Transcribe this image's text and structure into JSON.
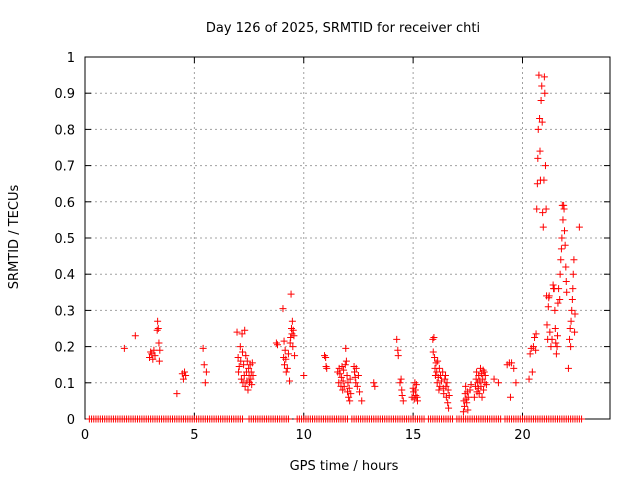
{
  "chart_data": {
    "type": "scatter",
    "title": "Day 126 of 2025, SRMTID for receiver chti",
    "xlabel": "GPS time / hours",
    "ylabel": "SRMTID / TECUs",
    "xlim": [
      0,
      24
    ],
    "ylim": [
      0,
      1
    ],
    "x_ticks": [
      0,
      5,
      10,
      15,
      20
    ],
    "y_ticks": [
      0,
      0.1,
      0.2,
      0.3,
      0.4,
      0.5,
      0.6,
      0.7,
      0.8,
      0.9,
      1
    ],
    "x_tick_labels": [
      "0",
      "5",
      "10",
      "15",
      "20"
    ],
    "y_tick_labels": [
      "0",
      "0.1",
      "0.2",
      "0.3",
      "0.4",
      "0.5",
      "0.6",
      "0.7",
      "0.8",
      "0.9",
      "1"
    ],
    "grid": true,
    "marker": "plus",
    "color": "#ff0000",
    "series": [
      {
        "name": "SRMTID",
        "points": [
          [
            1.8,
            0.195
          ],
          [
            2.3,
            0.23
          ],
          [
            2.95,
            0.17
          ],
          [
            3.0,
            0.185
          ],
          [
            3.05,
            0.18
          ],
          [
            3.1,
            0.165
          ],
          [
            3.15,
            0.19
          ],
          [
            3.2,
            0.175
          ],
          [
            3.3,
            0.245
          ],
          [
            3.32,
            0.27
          ],
          [
            3.35,
            0.25
          ],
          [
            3.38,
            0.21
          ],
          [
            3.4,
            0.16
          ],
          [
            3.42,
            0.19
          ],
          [
            4.2,
            0.07
          ],
          [
            4.45,
            0.125
          ],
          [
            4.5,
            0.11
          ],
          [
            4.55,
            0.13
          ],
          [
            4.6,
            0.12
          ],
          [
            5.4,
            0.195
          ],
          [
            5.45,
            0.15
          ],
          [
            5.5,
            0.1
          ],
          [
            5.55,
            0.13
          ],
          [
            6.95,
            0.24
          ],
          [
            7.0,
            0.17
          ],
          [
            7.02,
            0.13
          ],
          [
            7.05,
            0.145
          ],
          [
            7.1,
            0.2
          ],
          [
            7.12,
            0.16
          ],
          [
            7.15,
            0.11
          ],
          [
            7.18,
            0.235
          ],
          [
            7.2,
            0.185
          ],
          [
            7.22,
            0.1
          ],
          [
            7.25,
            0.15
          ],
          [
            7.28,
            0.12
          ],
          [
            7.3,
            0.245
          ],
          [
            7.32,
            0.09
          ],
          [
            7.35,
            0.175
          ],
          [
            7.38,
            0.13
          ],
          [
            7.4,
            0.105
          ],
          [
            7.42,
            0.16
          ],
          [
            7.45,
            0.08
          ],
          [
            7.48,
            0.14
          ],
          [
            7.5,
            0.12
          ],
          [
            7.52,
            0.1
          ],
          [
            7.55,
            0.15
          ],
          [
            7.58,
            0.11
          ],
          [
            7.6,
            0.13
          ],
          [
            7.62,
            0.095
          ],
          [
            7.65,
            0.155
          ],
          [
            7.68,
            0.12
          ],
          [
            8.75,
            0.21
          ],
          [
            8.8,
            0.205
          ],
          [
            9.05,
            0.305
          ],
          [
            9.08,
            0.17
          ],
          [
            9.1,
            0.215
          ],
          [
            9.12,
            0.15
          ],
          [
            9.15,
            0.19
          ],
          [
            9.18,
            0.165
          ],
          [
            9.2,
            0.13
          ],
          [
            9.25,
            0.14
          ],
          [
            9.3,
            0.18
          ],
          [
            9.35,
            0.105
          ],
          [
            9.38,
            0.21
          ],
          [
            9.4,
            0.225
          ],
          [
            9.42,
            0.345
          ],
          [
            9.44,
            0.25
          ],
          [
            9.46,
            0.235
          ],
          [
            9.48,
            0.27
          ],
          [
            9.5,
            0.2
          ],
          [
            9.52,
            0.245
          ],
          [
            9.55,
            0.23
          ],
          [
            9.58,
            0.175
          ],
          [
            10.0,
            0.12
          ],
          [
            10.95,
            0.175
          ],
          [
            11.0,
            0.17
          ],
          [
            11.02,
            0.145
          ],
          [
            11.05,
            0.14
          ],
          [
            11.55,
            0.13
          ],
          [
            11.6,
            0.1
          ],
          [
            11.62,
            0.14
          ],
          [
            11.65,
            0.125
          ],
          [
            11.7,
            0.09
          ],
          [
            11.72,
            0.115
          ],
          [
            11.75,
            0.145
          ],
          [
            11.78,
            0.08
          ],
          [
            11.8,
            0.105
          ],
          [
            11.82,
            0.135
          ],
          [
            11.85,
            0.09
          ],
          [
            11.9,
            0.15
          ],
          [
            11.92,
            0.195
          ],
          [
            11.95,
            0.16
          ],
          [
            11.98,
            0.12
          ],
          [
            12.0,
            0.075
          ],
          [
            12.02,
            0.1
          ],
          [
            12.05,
            0.06
          ],
          [
            12.08,
            0.085
          ],
          [
            12.1,
            0.05
          ],
          [
            12.12,
            0.11
          ],
          [
            12.15,
            0.07
          ],
          [
            12.3,
            0.145
          ],
          [
            12.32,
            0.13
          ],
          [
            12.35,
            0.115
          ],
          [
            12.38,
            0.1
          ],
          [
            12.4,
            0.14
          ],
          [
            12.45,
            0.09
          ],
          [
            12.5,
            0.12
          ],
          [
            12.55,
            0.075
          ],
          [
            12.65,
            0.05
          ],
          [
            13.2,
            0.1
          ],
          [
            13.25,
            0.09
          ],
          [
            14.25,
            0.22
          ],
          [
            14.3,
            0.19
          ],
          [
            14.32,
            0.175
          ],
          [
            14.4,
            0.1
          ],
          [
            14.45,
            0.11
          ],
          [
            14.48,
            0.08
          ],
          [
            14.5,
            0.065
          ],
          [
            14.55,
            0.05
          ],
          [
            14.95,
            0.06
          ],
          [
            15.0,
            0.085
          ],
          [
            15.02,
            0.075
          ],
          [
            15.05,
            0.055
          ],
          [
            15.08,
            0.1
          ],
          [
            15.1,
            0.08
          ],
          [
            15.12,
            0.065
          ],
          [
            15.15,
            0.095
          ],
          [
            15.18,
            0.06
          ],
          [
            15.2,
            0.05
          ],
          [
            15.9,
            0.22
          ],
          [
            15.92,
            0.185
          ],
          [
            15.95,
            0.225
          ],
          [
            15.98,
            0.17
          ],
          [
            16.0,
            0.14
          ],
          [
            16.02,
            0.12
          ],
          [
            16.05,
            0.155
          ],
          [
            16.08,
            0.13
          ],
          [
            16.1,
            0.1
          ],
          [
            16.12,
            0.16
          ],
          [
            16.15,
            0.115
          ],
          [
            16.18,
            0.08
          ],
          [
            16.2,
            0.14
          ],
          [
            16.22,
            0.09
          ],
          [
            16.25,
            0.12
          ],
          [
            16.3,
            0.105
          ],
          [
            16.35,
            0.13
          ],
          [
            16.38,
            0.085
          ],
          [
            16.4,
            0.07
          ],
          [
            16.45,
            0.11
          ],
          [
            16.48,
            0.12
          ],
          [
            16.5,
            0.09
          ],
          [
            16.52,
            0.06
          ],
          [
            16.55,
            0.1
          ],
          [
            16.58,
            0.045
          ],
          [
            16.6,
            0.08
          ],
          [
            16.62,
            0.03
          ],
          [
            16.65,
            0.065
          ],
          [
            17.3,
            0.02
          ],
          [
            17.32,
            0.05
          ],
          [
            17.35,
            0.035
          ],
          [
            17.38,
            0.07
          ],
          [
            17.4,
            0.09
          ],
          [
            17.42,
            0.055
          ],
          [
            17.45,
            0.045
          ],
          [
            17.48,
            0.075
          ],
          [
            17.5,
            0.025
          ],
          [
            17.52,
            0.06
          ],
          [
            17.6,
            0.08
          ],
          [
            17.65,
            0.095
          ],
          [
            17.8,
            0.06
          ],
          [
            17.85,
            0.09
          ],
          [
            17.88,
            0.11
          ],
          [
            17.9,
            0.13
          ],
          [
            17.92,
            0.075
          ],
          [
            17.95,
            0.1
          ],
          [
            17.98,
            0.085
          ],
          [
            18.0,
            0.12
          ],
          [
            18.02,
            0.07
          ],
          [
            18.05,
            0.105
          ],
          [
            18.08,
            0.14
          ],
          [
            18.1,
            0.09
          ],
          [
            18.12,
            0.125
          ],
          [
            18.15,
            0.06
          ],
          [
            18.18,
            0.11
          ],
          [
            18.2,
            0.135
          ],
          [
            18.22,
            0.08
          ],
          [
            18.25,
            0.13
          ],
          [
            18.28,
            0.1
          ],
          [
            18.3,
            0.12
          ],
          [
            18.35,
            0.095
          ],
          [
            18.7,
            0.11
          ],
          [
            18.9,
            0.1
          ],
          [
            19.3,
            0.15
          ],
          [
            19.4,
            0.155
          ],
          [
            19.5,
            0.155
          ],
          [
            19.45,
            0.06
          ],
          [
            19.6,
            0.14
          ],
          [
            19.7,
            0.1
          ],
          [
            20.3,
            0.11
          ],
          [
            20.35,
            0.18
          ],
          [
            20.4,
            0.195
          ],
          [
            20.45,
            0.13
          ],
          [
            20.5,
            0.2
          ],
          [
            20.55,
            0.225
          ],
          [
            20.6,
            0.19
          ],
          [
            20.62,
            0.235
          ],
          [
            20.65,
            0.58
          ],
          [
            20.68,
            0.65
          ],
          [
            20.7,
            0.72
          ],
          [
            20.72,
            0.8
          ],
          [
            20.75,
            0.95
          ],
          [
            20.78,
            0.83
          ],
          [
            20.8,
            0.74
          ],
          [
            20.82,
            0.66
          ],
          [
            20.85,
            0.88
          ],
          [
            20.88,
            0.92
          ],
          [
            20.9,
            0.82
          ],
          [
            20.92,
            0.57
          ],
          [
            20.95,
            0.53
          ],
          [
            20.98,
            0.66
          ],
          [
            21.0,
            0.945
          ],
          [
            21.02,
            0.9
          ],
          [
            21.05,
            0.7
          ],
          [
            21.08,
            0.58
          ],
          [
            21.1,
            0.34
          ],
          [
            21.12,
            0.26
          ],
          [
            21.15,
            0.22
          ],
          [
            21.18,
            0.31
          ],
          [
            21.2,
            0.335
          ],
          [
            21.22,
            0.34
          ],
          [
            21.25,
            0.24
          ],
          [
            21.3,
            0.2
          ],
          [
            21.35,
            0.22
          ],
          [
            21.4,
            0.37
          ],
          [
            21.42,
            0.36
          ],
          [
            21.45,
            0.36
          ],
          [
            21.48,
            0.3
          ],
          [
            21.5,
            0.25
          ],
          [
            21.52,
            0.21
          ],
          [
            21.55,
            0.18
          ],
          [
            21.58,
            0.2
          ],
          [
            21.6,
            0.23
          ],
          [
            21.62,
            0.32
          ],
          [
            21.65,
            0.36
          ],
          [
            21.7,
            0.33
          ],
          [
            21.72,
            0.4
          ],
          [
            21.75,
            0.44
          ],
          [
            21.78,
            0.47
          ],
          [
            21.8,
            0.5
          ],
          [
            21.82,
            0.59
          ],
          [
            21.85,
            0.55
          ],
          [
            21.88,
            0.59
          ],
          [
            21.9,
            0.58
          ],
          [
            21.92,
            0.52
          ],
          [
            21.95,
            0.48
          ],
          [
            21.98,
            0.42
          ],
          [
            22.0,
            0.38
          ],
          [
            22.02,
            0.35
          ],
          [
            22.1,
            0.14
          ],
          [
            22.15,
            0.22
          ],
          [
            22.18,
            0.25
          ],
          [
            22.2,
            0.2
          ],
          [
            22.22,
            0.27
          ],
          [
            22.25,
            0.3
          ],
          [
            22.28,
            0.33
          ],
          [
            22.3,
            0.36
          ],
          [
            22.32,
            0.4
          ],
          [
            22.35,
            0.44
          ],
          [
            22.38,
            0.24
          ],
          [
            22.4,
            0.29
          ],
          [
            22.6,
            0.53
          ]
        ],
        "zero_runs": [
          [
            0.2,
            7.2
          ],
          [
            7.5,
            9.3
          ],
          [
            9.7,
            12.0
          ],
          [
            12.2,
            15.5
          ],
          [
            15.7,
            16.8
          ],
          [
            17.0,
            19.0
          ],
          [
            19.2,
            22.7
          ]
        ],
        "zero_value": 0
      }
    ]
  }
}
